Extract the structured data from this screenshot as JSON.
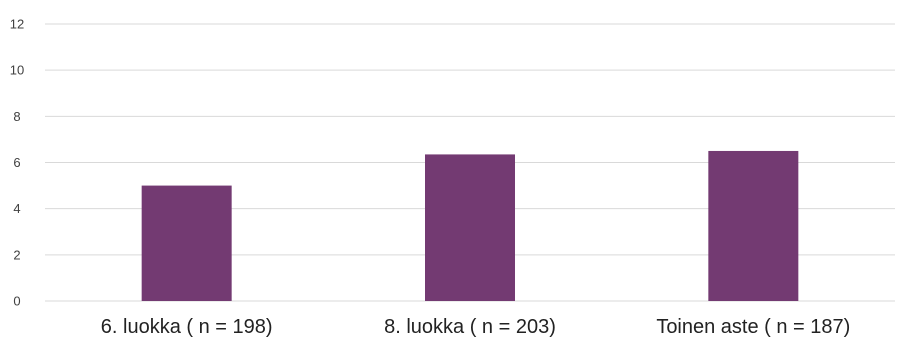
{
  "chart_data": {
    "type": "bar",
    "title": "",
    "xlabel": "",
    "ylabel": "",
    "categories": [
      "6. luokka ( n = 198)",
      "8. luokka ( n = 203)",
      "Toinen aste ( n = 187)"
    ],
    "values": [
      5.0,
      6.35,
      6.5
    ],
    "ylim": [
      0,
      12
    ],
    "yticks": [
      "0",
      "2",
      "4",
      "6",
      "8",
      "10",
      "12"
    ],
    "grid": true,
    "legend": "none",
    "colors": {
      "bar": "#733a72",
      "grid": "#d9d9d9",
      "axis_text": "#404040"
    }
  }
}
